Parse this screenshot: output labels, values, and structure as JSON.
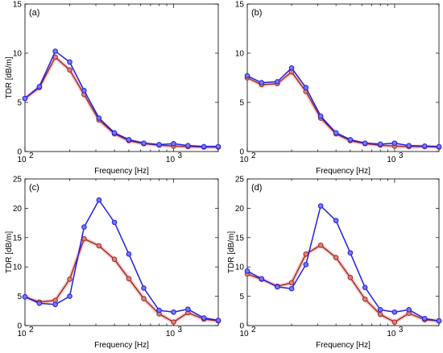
{
  "figure": {
    "colors": {
      "series_a": "#2020e0",
      "series_b": "#a03020",
      "series_b_marker": "#e08080"
    }
  },
  "chart_data": [
    {
      "type": "line",
      "panel": "(a)",
      "xlabel": "Frequency [Hz]",
      "ylabel": "TDR [dB/m]",
      "xscale": "log",
      "xlim": [
        100,
        2000
      ],
      "ylim": [
        0,
        15
      ],
      "yticks": [
        0,
        5,
        10,
        15
      ],
      "xticks": [
        100,
        1000
      ],
      "xticklabels": [
        {
          "base": "10",
          "exp": "2"
        },
        {
          "base": "10",
          "exp": "3"
        }
      ],
      "grid": false,
      "x": [
        100,
        125,
        160,
        200,
        250,
        315,
        400,
        500,
        630,
        800,
        1000,
        1250,
        1600,
        2000
      ],
      "series": [
        {
          "color": "#2020e0",
          "values": [
            5.4,
            6.6,
            10.2,
            9.1,
            6.2,
            3.4,
            1.9,
            1.2,
            0.85,
            0.7,
            0.8,
            0.6,
            0.5,
            0.5
          ]
        },
        {
          "color": "#a03020",
          "values": [
            5.4,
            6.5,
            9.6,
            8.3,
            5.8,
            3.2,
            1.8,
            1.1,
            0.8,
            0.65,
            0.55,
            0.5,
            0.45,
            0.45
          ]
        }
      ]
    },
    {
      "type": "line",
      "panel": "(b)",
      "xlabel": "Frequency [Hz]",
      "ylabel": "",
      "xscale": "log",
      "xlim": [
        100,
        2000
      ],
      "ylim": [
        0,
        15
      ],
      "yticks": [
        0,
        5,
        10,
        15
      ],
      "xticks": [
        100,
        1000
      ],
      "xticklabels": [
        {
          "base": "10",
          "exp": "2"
        },
        {
          "base": "10",
          "exp": "3"
        }
      ],
      "grid": false,
      "x": [
        100,
        125,
        160,
        200,
        250,
        315,
        400,
        500,
        630,
        800,
        1000,
        1250,
        1600,
        2000
      ],
      "series": [
        {
          "color": "#2020e0",
          "values": [
            7.7,
            7.0,
            7.1,
            8.5,
            6.5,
            3.6,
            1.9,
            1.2,
            0.85,
            0.75,
            0.85,
            0.6,
            0.55,
            0.5
          ]
        },
        {
          "color": "#a03020",
          "values": [
            7.5,
            6.8,
            6.9,
            8.1,
            6.1,
            3.4,
            1.8,
            1.1,
            0.8,
            0.65,
            0.55,
            0.5,
            0.5,
            0.45
          ]
        }
      ]
    },
    {
      "type": "line",
      "panel": "(c)",
      "xlabel": "Frequency [Hz]",
      "ylabel": "TDR [dB/m]",
      "xscale": "log",
      "xlim": [
        100,
        2000
      ],
      "ylim": [
        0,
        25
      ],
      "yticks": [
        0,
        5,
        10,
        15,
        20,
        25
      ],
      "xticks": [
        100,
        1000
      ],
      "xticklabels": [
        {
          "base": "10",
          "exp": "2"
        },
        {
          "base": "10",
          "exp": "3"
        }
      ],
      "grid": false,
      "x": [
        100,
        125,
        160,
        200,
        250,
        315,
        400,
        500,
        630,
        800,
        1000,
        1250,
        1600,
        2000
      ],
      "series": [
        {
          "color": "#2020e0",
          "values": [
            4.9,
            3.8,
            3.6,
            5.0,
            16.8,
            21.4,
            17.6,
            12.2,
            6.4,
            2.6,
            2.3,
            2.8,
            1.3,
            0.9
          ]
        },
        {
          "color": "#a03020",
          "values": [
            4.9,
            4.0,
            4.3,
            7.9,
            14.8,
            13.6,
            11.3,
            8.0,
            4.6,
            2.0,
            0.6,
            2.2,
            1.1,
            0.8
          ]
        }
      ]
    },
    {
      "type": "line",
      "panel": "(d)",
      "xlabel": "Frequency [Hz]",
      "ylabel": "TDR [dB/m]",
      "xscale": "log",
      "xlim": [
        100,
        2000
      ],
      "ylim": [
        0,
        25
      ],
      "yticks": [
        0,
        5,
        10,
        15,
        20,
        25
      ],
      "xticks": [
        100,
        1000
      ],
      "xticklabels": [
        {
          "base": "10",
          "exp": "2"
        },
        {
          "base": "10",
          "exp": "3"
        }
      ],
      "grid": false,
      "x": [
        100,
        125,
        160,
        200,
        250,
        315,
        400,
        500,
        630,
        800,
        1000,
        1250,
        1600,
        2000
      ],
      "series": [
        {
          "color": "#2020e0",
          "values": [
            9.3,
            8.0,
            6.6,
            6.3,
            10.4,
            20.4,
            17.9,
            12.4,
            6.5,
            2.7,
            2.3,
            2.7,
            1.2,
            0.8
          ]
        },
        {
          "color": "#a03020",
          "values": [
            8.8,
            7.9,
            6.7,
            7.3,
            12.2,
            13.7,
            11.6,
            8.2,
            4.5,
            1.9,
            0.6,
            2.1,
            1.0,
            0.8
          ]
        }
      ]
    }
  ]
}
